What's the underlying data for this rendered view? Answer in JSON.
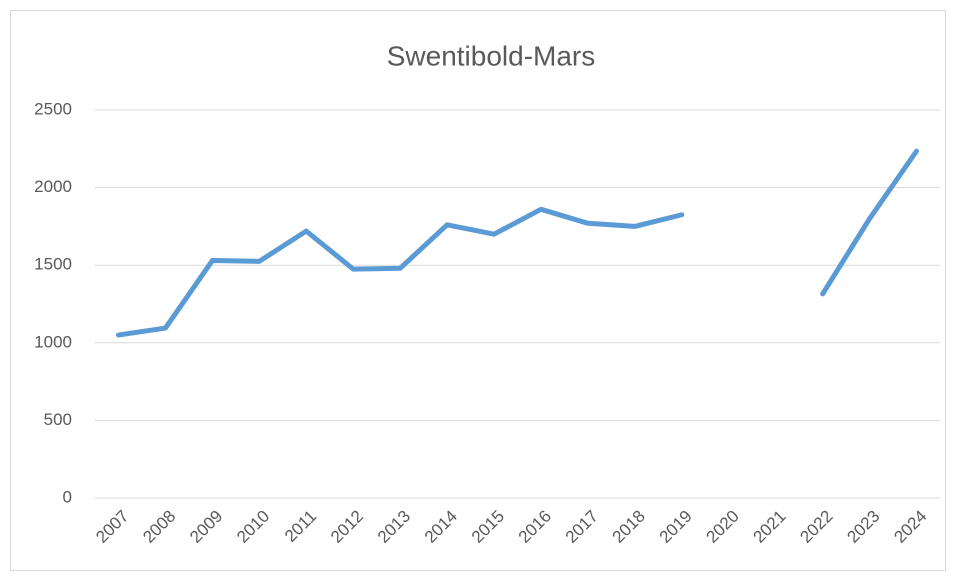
{
  "chart_data": {
    "type": "line",
    "title": "Swentibold-Mars",
    "categories": [
      "2007",
      "2008",
      "2009",
      "2010",
      "2011",
      "2012",
      "2013",
      "2014",
      "2015",
      "2016",
      "2017",
      "2018",
      "2019",
      "2020",
      "2021",
      "2022",
      "2023",
      "2024"
    ],
    "values": [
      1050,
      1095,
      1530,
      1525,
      1720,
      1475,
      1480,
      1760,
      1700,
      1860,
      1770,
      1750,
      1825,
      null,
      null,
      1315,
      1800,
      2235
    ],
    "color": "#5b9bd5",
    "ylim": [
      0,
      2500
    ],
    "yticks": [
      0,
      500,
      1000,
      1500,
      2000,
      2500
    ],
    "grid": true
  }
}
